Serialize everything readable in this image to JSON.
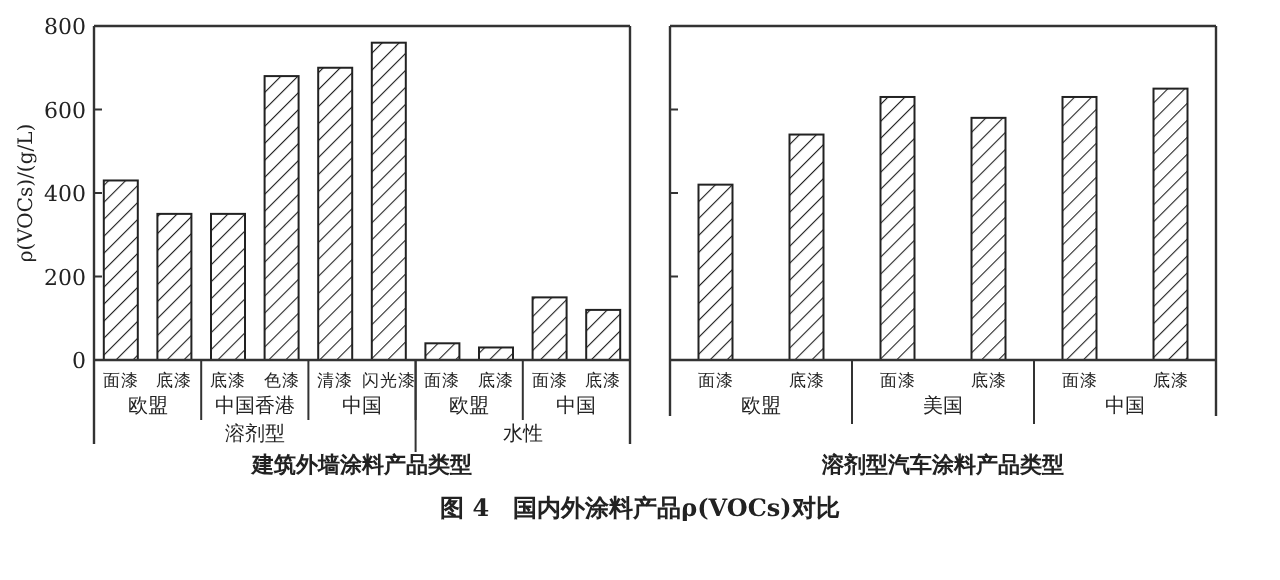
{
  "chart_data": [
    {
      "type": "bar",
      "title": "图 4　国内外涂料产品ρ(VOCs)对比",
      "ylabel": "ρ(VOCs)/(g/L)",
      "xlabel": "建筑外墙涂料产品类型",
      "categories": [
        "面漆",
        "底漆",
        "底漆",
        "色漆",
        "清漆",
        "闪光漆",
        "面漆",
        "底漆",
        "面漆",
        "底漆"
      ],
      "values": [
        430,
        350,
        350,
        680,
        700,
        760,
        40,
        30,
        150,
        120
      ],
      "color": "#222222",
      "ylim": [
        0,
        800
      ],
      "yticks": [
        0,
        200,
        400,
        600,
        800
      ],
      "annotations": [
        "欧盟",
        "中国香港",
        "中国",
        "欧盟",
        "中国",
        "溶剂型",
        "水性"
      ]
    },
    {
      "type": "bar",
      "xlabel": "溶剂型汽车涂料产品类型",
      "categories": [
        "面漆",
        "底漆",
        "面漆",
        "底漆",
        "面漆",
        "底漆"
      ],
      "values": [
        420,
        540,
        630,
        580,
        630,
        650
      ],
      "color": "#222222",
      "ylim": [
        0,
        800
      ],
      "yticks": [
        {
          "value": 0,
          "label": null
        },
        {
          "value": 200,
          "label": null
        },
        {
          "value": 400,
          "label": null
        },
        {
          "value": 600,
          "label": null
        },
        {
          "value": 800,
          "label": null
        }
      ],
      "tick_labels": "x",
      "annotations": [
        "欧盟",
        "美国",
        "中国"
      ]
    }
  ]
}
